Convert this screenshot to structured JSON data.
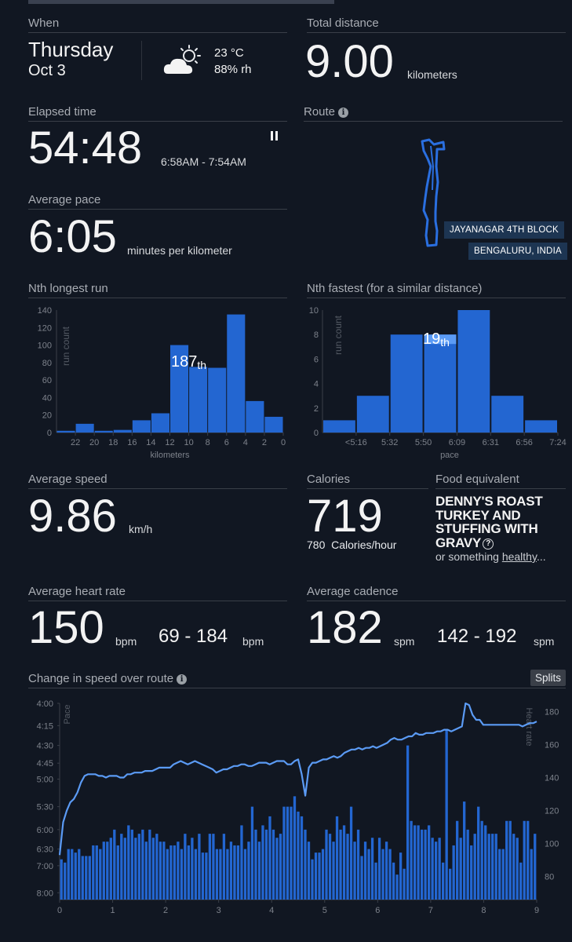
{
  "when": {
    "label": "When",
    "day": "Thursday",
    "date": "Oct 3",
    "weather_icon": "partly-cloudy-icon",
    "temperature": "23 °C",
    "humidity": "88% rh"
  },
  "total_distance": {
    "label": "Total distance",
    "value": "9.00",
    "unit": "kilometers"
  },
  "elapsed": {
    "label": "Elapsed time",
    "value": "54:48",
    "range": "6:58AM - 7:54AM",
    "pause_icon": "pause-icon"
  },
  "pace": {
    "label": "Average pace",
    "value": "6:05",
    "unit": "minutes per kilometer"
  },
  "route": {
    "label": "Route",
    "neighborhood": "JAYANAGAR 4TH BLOCK",
    "city": "BENGALURU, INDIA"
  },
  "longest": {
    "label": "Nth longest run",
    "rank": "187",
    "suffix": "th"
  },
  "fastest": {
    "label": "Nth fastest (for a similar distance)",
    "rank": "19",
    "suffix": "th"
  },
  "speed": {
    "label": "Average speed",
    "value": "9.86",
    "unit": "km/h"
  },
  "calories": {
    "label": "Calories",
    "value": "719",
    "rate": "780",
    "rate_unit": "Calories/hour"
  },
  "food": {
    "label": "Food equivalent",
    "name": "DENNY'S ROAST TURKEY AND STUFFING WITH GRAVY",
    "sub_prefix": "or something ",
    "sub_link": "healthy",
    "sub_suffix": "..."
  },
  "heart": {
    "label": "Average heart rate",
    "value": "150",
    "unit": "bpm",
    "range": "69 - 184",
    "range_unit": "bpm"
  },
  "cadence": {
    "label": "Average cadence",
    "value": "182",
    "unit": "spm",
    "range": "142 - 192",
    "range_unit": "spm"
  },
  "speed_change": {
    "label": "Change in speed over route",
    "splits_label": "Splits"
  },
  "colors": {
    "bar": "#2366d1",
    "line": "#5b9bf5",
    "bg": "#111722"
  },
  "chart_data": [
    {
      "type": "bar",
      "title": "Nth longest run",
      "xlabel": "kilometers",
      "ylabel": "run count",
      "ylim": [
        0,
        140
      ],
      "yticks": [
        0,
        20,
        40,
        60,
        80,
        100,
        120,
        140
      ],
      "xticks": [
        "22",
        "20",
        "18",
        "16",
        "14",
        "12",
        "10",
        "8",
        "6",
        "4",
        "2",
        "0"
      ],
      "bins": [
        23,
        21,
        19,
        17,
        15,
        13,
        11,
        9,
        7,
        5,
        3,
        1
      ],
      "values": [
        2,
        10,
        2,
        3,
        14,
        22,
        100,
        75,
        74,
        135,
        36,
        18
      ],
      "annotation": "187th"
    },
    {
      "type": "bar",
      "title": "Nth fastest (for a similar distance)",
      "xlabel": "pace",
      "ylabel": "run count",
      "ylim": [
        0,
        10
      ],
      "yticks": [
        0,
        2,
        4,
        6,
        8,
        10
      ],
      "xticks": [
        "<5:16",
        "5:32",
        "5:50",
        "6:09",
        "6:31",
        "6:56",
        "7:24"
      ],
      "values": [
        1,
        3,
        8,
        8,
        10,
        3,
        1
      ],
      "highlight_bin": 3,
      "annotation": "19th"
    },
    {
      "type": "bar",
      "title": "Change in speed over route",
      "xlabel": "",
      "ylabel_left": "Pace",
      "ylabel_right": "Heart rate",
      "x_ticks": [
        0,
        1,
        2,
        3,
        4,
        5,
        6,
        7,
        8,
        9
      ],
      "pace_ticks": [
        "4:00",
        "4:15",
        "4:30",
        "4:45",
        "5:00",
        "5:30",
        "6:00",
        "6:30",
        "7:00",
        "8:00"
      ],
      "hr_ticks": [
        80,
        100,
        120,
        140,
        160,
        180
      ],
      "xlim": [
        0,
        9
      ],
      "series": [
        {
          "name": "Pace",
          "type": "bar",
          "unit": "min/km",
          "values": [
            6.8,
            6.9,
            6.5,
            6.5,
            6.6,
            6.5,
            6.7,
            6.7,
            6.7,
            6.4,
            6.4,
            6.5,
            6.3,
            6.3,
            6.2,
            6.0,
            6.4,
            6.1,
            6.2,
            5.9,
            6.0,
            6.2,
            6.1,
            6.0,
            6.3,
            6.0,
            6.2,
            6.1,
            6.3,
            6.3,
            6.5,
            6.4,
            6.4,
            6.3,
            6.5,
            6.1,
            6.4,
            6.2,
            6.5,
            6.1,
            6.6,
            6.6,
            6.1,
            6.1,
            6.5,
            6.5,
            6.1,
            6.5,
            6.3,
            6.4,
            6.4,
            5.9,
            6.5,
            6.3,
            5.5,
            6.0,
            6.3,
            5.9,
            6.0,
            5.7,
            6.0,
            6.2,
            6.1,
            5.5,
            5.5,
            5.5,
            5.3,
            5.6,
            5.7,
            6.0,
            6.3,
            6.8,
            6.6,
            6.6,
            6.5,
            6.0,
            6.1,
            6.3,
            5.7,
            6.0,
            5.9,
            6.1,
            5.5,
            6.3,
            6.0,
            6.7,
            6.3,
            6.5,
            6.2,
            6.9,
            6.2,
            6.5,
            6.3,
            6.5,
            6.9,
            7.3,
            6.6,
            7.1,
            4.5,
            5.8,
            5.9,
            5.9,
            6.0,
            6.0,
            5.9,
            6.2,
            6.3,
            6.2,
            6.9,
            4.3,
            7.1,
            6.4,
            5.8,
            6.2,
            5.4,
            6.0,
            6.4,
            6.1,
            5.5,
            5.8,
            5.9,
            6.1,
            6.1,
            6.1,
            6.5,
            6.5,
            5.8,
            5.8,
            6.1,
            6.2,
            6.9,
            5.8,
            5.8,
            6.5,
            6.1
          ],
          "color": "#2366d1"
        },
        {
          "name": "Heart rate",
          "type": "line",
          "unit": "bpm",
          "values": [
            93,
            113,
            120,
            125,
            127,
            131,
            137,
            141,
            142,
            142,
            142,
            141,
            141,
            140,
            141,
            141,
            141,
            140,
            140,
            142,
            142,
            143,
            143,
            143,
            144,
            144,
            144,
            145,
            146,
            146,
            146,
            146,
            148,
            149,
            150,
            149,
            148,
            149,
            150,
            149,
            148,
            147,
            146,
            145,
            143,
            144,
            145,
            145,
            146,
            147,
            147,
            148,
            148,
            147,
            147,
            148,
            149,
            149,
            149,
            148,
            149,
            150,
            150,
            150,
            148,
            148,
            150,
            151,
            142,
            129,
            146,
            149,
            149,
            150,
            151,
            151,
            152,
            153,
            152,
            153,
            155,
            156,
            157,
            157,
            158,
            157,
            158,
            158,
            159,
            158,
            159,
            160,
            161,
            163,
            164,
            163,
            163,
            164,
            165,
            165,
            167,
            166,
            166,
            167,
            167,
            167,
            168,
            168,
            169,
            169,
            168,
            169,
            170,
            171,
            185,
            184,
            178,
            175,
            175,
            172,
            172,
            172,
            172,
            172,
            172,
            172,
            172,
            172,
            172,
            172,
            171,
            172,
            173,
            173,
            174
          ]
        }
      ]
    }
  ]
}
